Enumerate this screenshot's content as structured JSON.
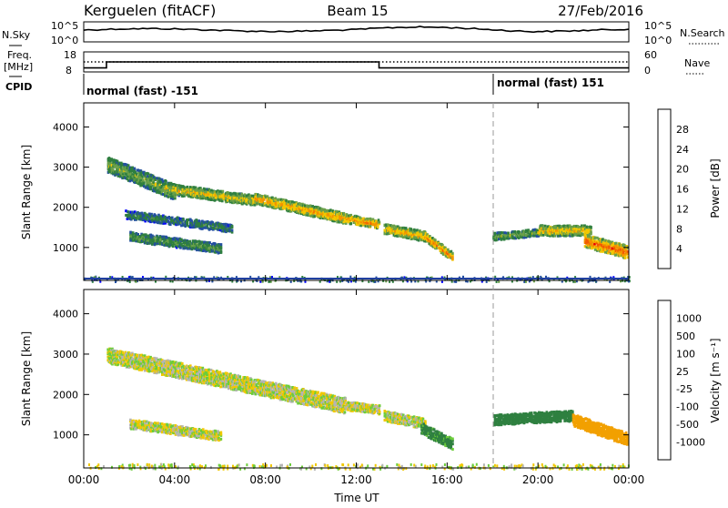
{
  "header": {
    "station": "Kerguelen (fitACF)",
    "beam": "Beam 15",
    "date": "27/Feb/2016"
  },
  "panels": {
    "nsky_label": "N.Sky",
    "nsky_ticks": [
      "10^5",
      "10^0"
    ],
    "nsearch_label": "N.Search",
    "nsearch_ticks": [
      "10^5",
      "10^0"
    ],
    "freq_label_1": "Freq.",
    "freq_label_2": "[MHz]",
    "freq_ticks": [
      "18",
      "8"
    ],
    "nave_label": "Nave",
    "nave_ticks": [
      "60",
      "0"
    ],
    "cpid_label": "CPID",
    "cpid_segments": [
      {
        "label": "normal (fast) -151",
        "start_hour": 0
      },
      {
        "label": "normal (fast) 151",
        "start_hour": 18
      }
    ]
  },
  "power_colorbar": {
    "title": "Power [dB]",
    "colors": [
      "#0000ff",
      "#234fa0",
      "#2f7f3f",
      "#6aa04a",
      "#f2c800",
      "#f29400",
      "#f25a00",
      "#e80000"
    ],
    "tick_labels": [
      "4",
      "8",
      "12",
      "16",
      "20",
      "24",
      "28"
    ]
  },
  "velocity_colorbar": {
    "title": "Velocity [m s⁻¹]",
    "colors": [
      "#e80000",
      "#f25a00",
      "#f2a000",
      "#f0c800",
      "#b4b4b4",
      "#b4b4b4",
      "#6ccd3a",
      "#2f8040",
      "#2c6aa0",
      "#0000ff"
    ],
    "tick_labels": [
      "-1000",
      "-500",
      "-100",
      "-25",
      "25",
      "100",
      "500",
      "1000"
    ]
  },
  "axes": {
    "ylabel": "Slant Range [km]",
    "xlabel": "Time UT",
    "y_ticks": [
      "1000",
      "2000",
      "3000",
      "4000"
    ],
    "x_ticks": [
      "00:00",
      "04:00",
      "08:00",
      "12:00",
      "16:00",
      "20:00",
      "00:00"
    ]
  },
  "chart_data": {
    "type": "heatmap",
    "x_range_hours": [
      0,
      24
    ],
    "y_range_km": [
      180,
      4600
    ],
    "change_hour": 18,
    "frequency_mhz": [
      {
        "start": 0,
        "end": 1,
        "value": 10
      },
      {
        "start": 1,
        "end": 13,
        "value": 13
      },
      {
        "start": 13,
        "end": 24,
        "value": 10
      }
    ],
    "nave_level": 30,
    "power_features": [
      {
        "t0": 1.0,
        "t1": 4.0,
        "r0": 3100,
        "r1": 2400,
        "w": 380,
        "db": 14
      },
      {
        "t0": 3.5,
        "t1": 7.5,
        "r0": 2500,
        "r1": 2200,
        "w": 260,
        "db": 18
      },
      {
        "t0": 7.5,
        "t1": 11.5,
        "r0": 2250,
        "r1": 1750,
        "w": 260,
        "db": 21
      },
      {
        "t0": 11.5,
        "t1": 13.0,
        "r0": 1750,
        "r1": 1600,
        "w": 220,
        "db": 22
      },
      {
        "t0": 1.8,
        "t1": 6.5,
        "r0": 1850,
        "r1": 1500,
        "w": 200,
        "db": 10
      },
      {
        "t0": 2.0,
        "t1": 6.0,
        "r0": 1300,
        "r1": 1000,
        "w": 230,
        "db": 12
      },
      {
        "t0": 13.2,
        "t1": 15.0,
        "r0": 1500,
        "r1": 1300,
        "w": 250,
        "db": 20
      },
      {
        "t0": 15.0,
        "t1": 16.2,
        "r0": 1300,
        "r1": 800,
        "w": 220,
        "db": 23
      },
      {
        "t0": 18.0,
        "t1": 20.0,
        "r0": 1300,
        "r1": 1400,
        "w": 180,
        "db": 14
      },
      {
        "t0": 20.0,
        "t1": 22.3,
        "r0": 1450,
        "r1": 1450,
        "w": 260,
        "db": 19
      },
      {
        "t0": 22.0,
        "t1": 24.0,
        "r0": 1200,
        "r1": 900,
        "w": 320,
        "db": 25
      }
    ],
    "velocity_features": [
      {
        "t0": 1.0,
        "t1": 11.5,
        "r0": 3000,
        "r1": 1750,
        "w": 380,
        "v": 0
      },
      {
        "t0": 11.5,
        "t1": 13.0,
        "r0": 1750,
        "r1": 1650,
        "w": 220,
        "v": 0
      },
      {
        "t0": 2.0,
        "t1": 6.0,
        "r0": 1300,
        "r1": 1000,
        "w": 230,
        "v": 0
      },
      {
        "t0": 13.2,
        "t1": 15.0,
        "r0": 1500,
        "r1": 1300,
        "w": 250,
        "v": 0
      },
      {
        "t0": 14.8,
        "t1": 16.2,
        "r0": 1200,
        "r1": 800,
        "w": 280,
        "v": 150
      },
      {
        "t0": 18.0,
        "t1": 21.5,
        "r0": 1400,
        "r1": 1500,
        "w": 260,
        "v": 300
      },
      {
        "t0": 21.5,
        "t1": 24.0,
        "r0": 1400,
        "r1": 900,
        "w": 300,
        "v": -200
      }
    ]
  }
}
